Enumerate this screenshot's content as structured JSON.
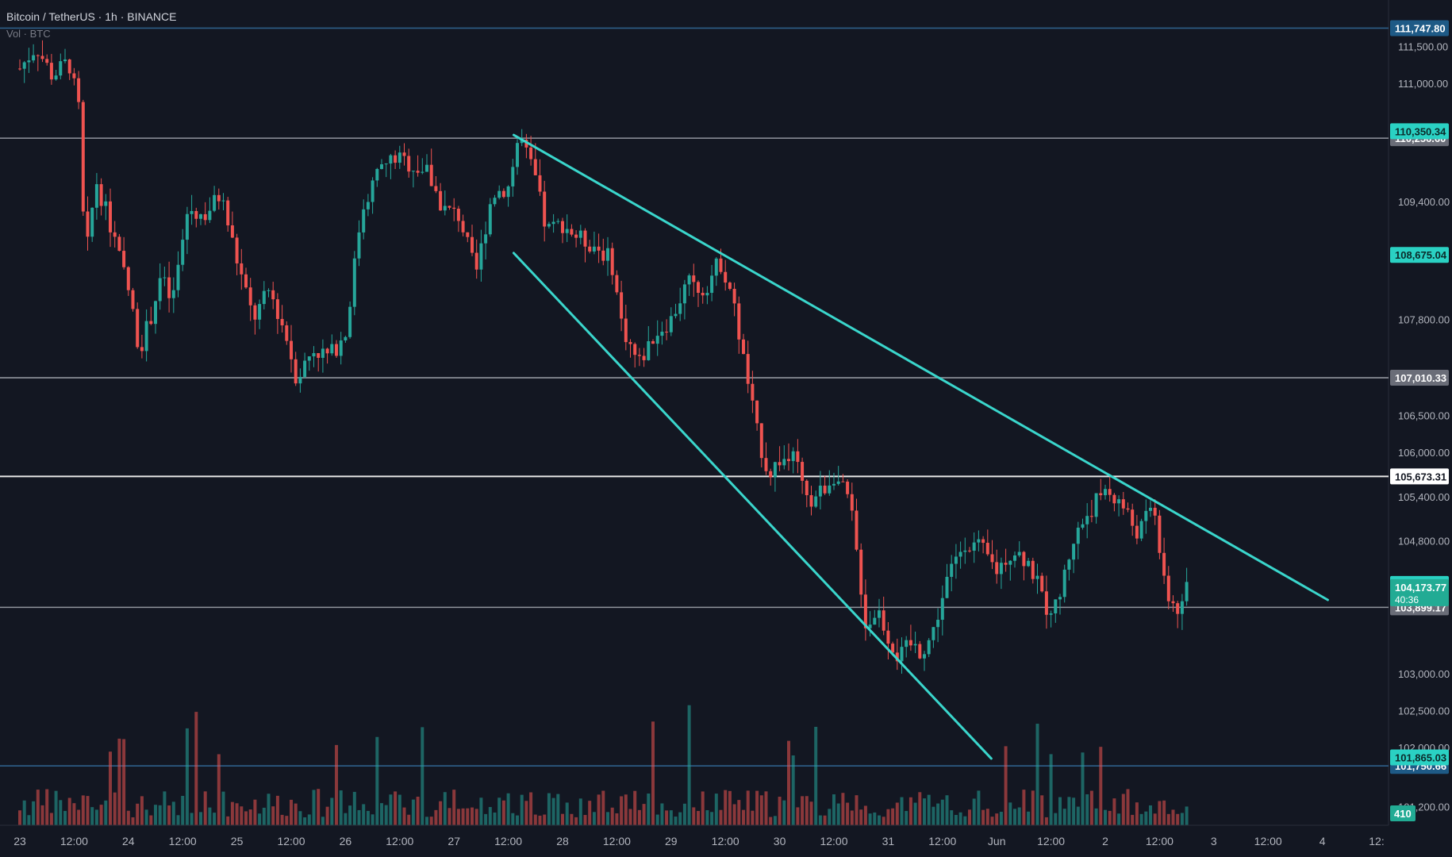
{
  "symbol_line": "Bitcoin / TetherUS · 1h · BINANCE",
  "volume_label": "Vol · BTC",
  "colors": {
    "background": "#131722",
    "bull": "#26a69a",
    "bear": "#ef5350",
    "trendline": "#3ad6cc",
    "hline": "#b2b5be",
    "hline_strong": "#e8e8e8",
    "blue_line": "#2e5f8a",
    "axis_text": "#b2b5be"
  },
  "chart_data": {
    "type": "candlestick",
    "title": "Bitcoin / TetherUS · 1h · BINANCE",
    "price_axis": {
      "ylim": [
        101000,
        112000
      ],
      "ticks": [
        "111,500.00",
        "111,000.00",
        "109,400.00",
        "107,800.00",
        "106,500.00",
        "106,000.00",
        "105,400.00",
        "104,800.00",
        "103,000.00",
        "102,500.00",
        "102,000.00",
        "101,200.00"
      ]
    },
    "time_axis": {
      "ticks": [
        "23",
        "12:00",
        "24",
        "12:00",
        "25",
        "12:00",
        "26",
        "12:00",
        "27",
        "12:00",
        "28",
        "12:00",
        "29",
        "12:00",
        "30",
        "12:00",
        "31",
        "12:00",
        "Jun",
        "12:00",
        "2",
        "12:00",
        "3",
        "12:00",
        "4",
        "12:"
      ]
    },
    "horizontal_lines": [
      {
        "price": 111747.8,
        "label": "111,747.80",
        "style": "blue"
      },
      {
        "price": 110256.6,
        "label": "110,256.60",
        "style": "gray"
      },
      {
        "price": 107010.33,
        "label": "107,010.33",
        "style": "gray"
      },
      {
        "price": 105673.31,
        "label": "105,673.31",
        "style": "white"
      },
      {
        "price": 103899.17,
        "label": "103,899.17",
        "style": "gray"
      },
      {
        "price": 101750.66,
        "label": "101,750.66",
        "style": "blue"
      }
    ],
    "price_labels": [
      {
        "price": 110350.34,
        "label": "110,350.34",
        "style": "teal"
      },
      {
        "price": 108675.04,
        "label": "108,675.04",
        "style": "teal"
      },
      {
        "price": 104216.92,
        "label": "104,216.92",
        "style": "teal"
      },
      {
        "price": 104173.77,
        "label": "104,173.77",
        "sublabel": "40:36",
        "style": "teal-current"
      },
      {
        "price": 101865.03,
        "label": "101,865.03",
        "style": "teal"
      }
    ],
    "volume_label": "410",
    "trendlines": [
      {
        "name": "upper",
        "from": {
          "t": 4.55,
          "p": 110300
        },
        "to": {
          "t": 12.05,
          "p": 104000
        }
      },
      {
        "name": "lower",
        "from": {
          "t": 4.55,
          "p": 108700
        },
        "to": {
          "t": 8.95,
          "p": 101850
        }
      }
    ],
    "price_path": [
      [
        0.0,
        111200
      ],
      [
        0.15,
        111500
      ],
      [
        0.3,
        111100
      ],
      [
        0.45,
        111300
      ],
      [
        0.55,
        110600
      ],
      [
        0.6,
        108500
      ],
      [
        0.7,
        109700
      ],
      [
        0.85,
        109000
      ],
      [
        1.0,
        108200
      ],
      [
        1.1,
        107400
      ],
      [
        1.2,
        107800
      ],
      [
        1.3,
        108400
      ],
      [
        1.4,
        108000
      ],
      [
        1.55,
        109300
      ],
      [
        1.7,
        109200
      ],
      [
        1.85,
        109500
      ],
      [
        2.0,
        108600
      ],
      [
        2.15,
        107800
      ],
      [
        2.3,
        108200
      ],
      [
        2.45,
        107600
      ],
      [
        2.55,
        107000
      ],
      [
        2.7,
        107400
      ],
      [
        2.85,
        107300
      ],
      [
        3.0,
        107600
      ],
      [
        3.15,
        109300
      ],
      [
        3.3,
        109800
      ],
      [
        3.45,
        110000
      ],
      [
        3.6,
        109900
      ],
      [
        3.75,
        109800
      ],
      [
        3.9,
        109300
      ],
      [
        4.05,
        109200
      ],
      [
        4.2,
        108400
      ],
      [
        4.35,
        109500
      ],
      [
        4.5,
        109600
      ],
      [
        4.6,
        110300
      ],
      [
        4.75,
        109700
      ],
      [
        4.85,
        109000
      ],
      [
        5.0,
        109100
      ],
      [
        5.15,
        108900
      ],
      [
        5.3,
        108800
      ],
      [
        5.45,
        108600
      ],
      [
        5.55,
        107700
      ],
      [
        5.7,
        107200
      ],
      [
        5.85,
        107600
      ],
      [
        6.0,
        107800
      ],
      [
        6.15,
        108300
      ],
      [
        6.3,
        108200
      ],
      [
        6.45,
        108600
      ],
      [
        6.55,
        108200
      ],
      [
        6.7,
        107000
      ],
      [
        6.8,
        106200
      ],
      [
        6.9,
        105700
      ],
      [
        7.0,
        105900
      ],
      [
        7.15,
        105900
      ],
      [
        7.25,
        105300
      ],
      [
        7.4,
        105500
      ],
      [
        7.5,
        105700
      ],
      [
        7.65,
        105300
      ],
      [
        7.8,
        103600
      ],
      [
        7.9,
        103900
      ],
      [
        8.0,
        103500
      ],
      [
        8.1,
        103200
      ],
      [
        8.2,
        103400
      ],
      [
        8.3,
        103300
      ],
      [
        8.4,
        103500
      ],
      [
        8.55,
        104300
      ],
      [
        8.7,
        104800
      ],
      [
        8.85,
        104700
      ],
      [
        9.0,
        104400
      ],
      [
        9.15,
        104700
      ],
      [
        9.3,
        104500
      ],
      [
        9.45,
        103900
      ],
      [
        9.55,
        103900
      ],
      [
        9.7,
        104800
      ],
      [
        9.85,
        105200
      ],
      [
        10.0,
        105500
      ],
      [
        10.15,
        105300
      ],
      [
        10.3,
        104900
      ],
      [
        10.45,
        105300
      ],
      [
        10.55,
        104100
      ],
      [
        10.7,
        103800
      ],
      [
        10.75,
        104170
      ]
    ]
  }
}
